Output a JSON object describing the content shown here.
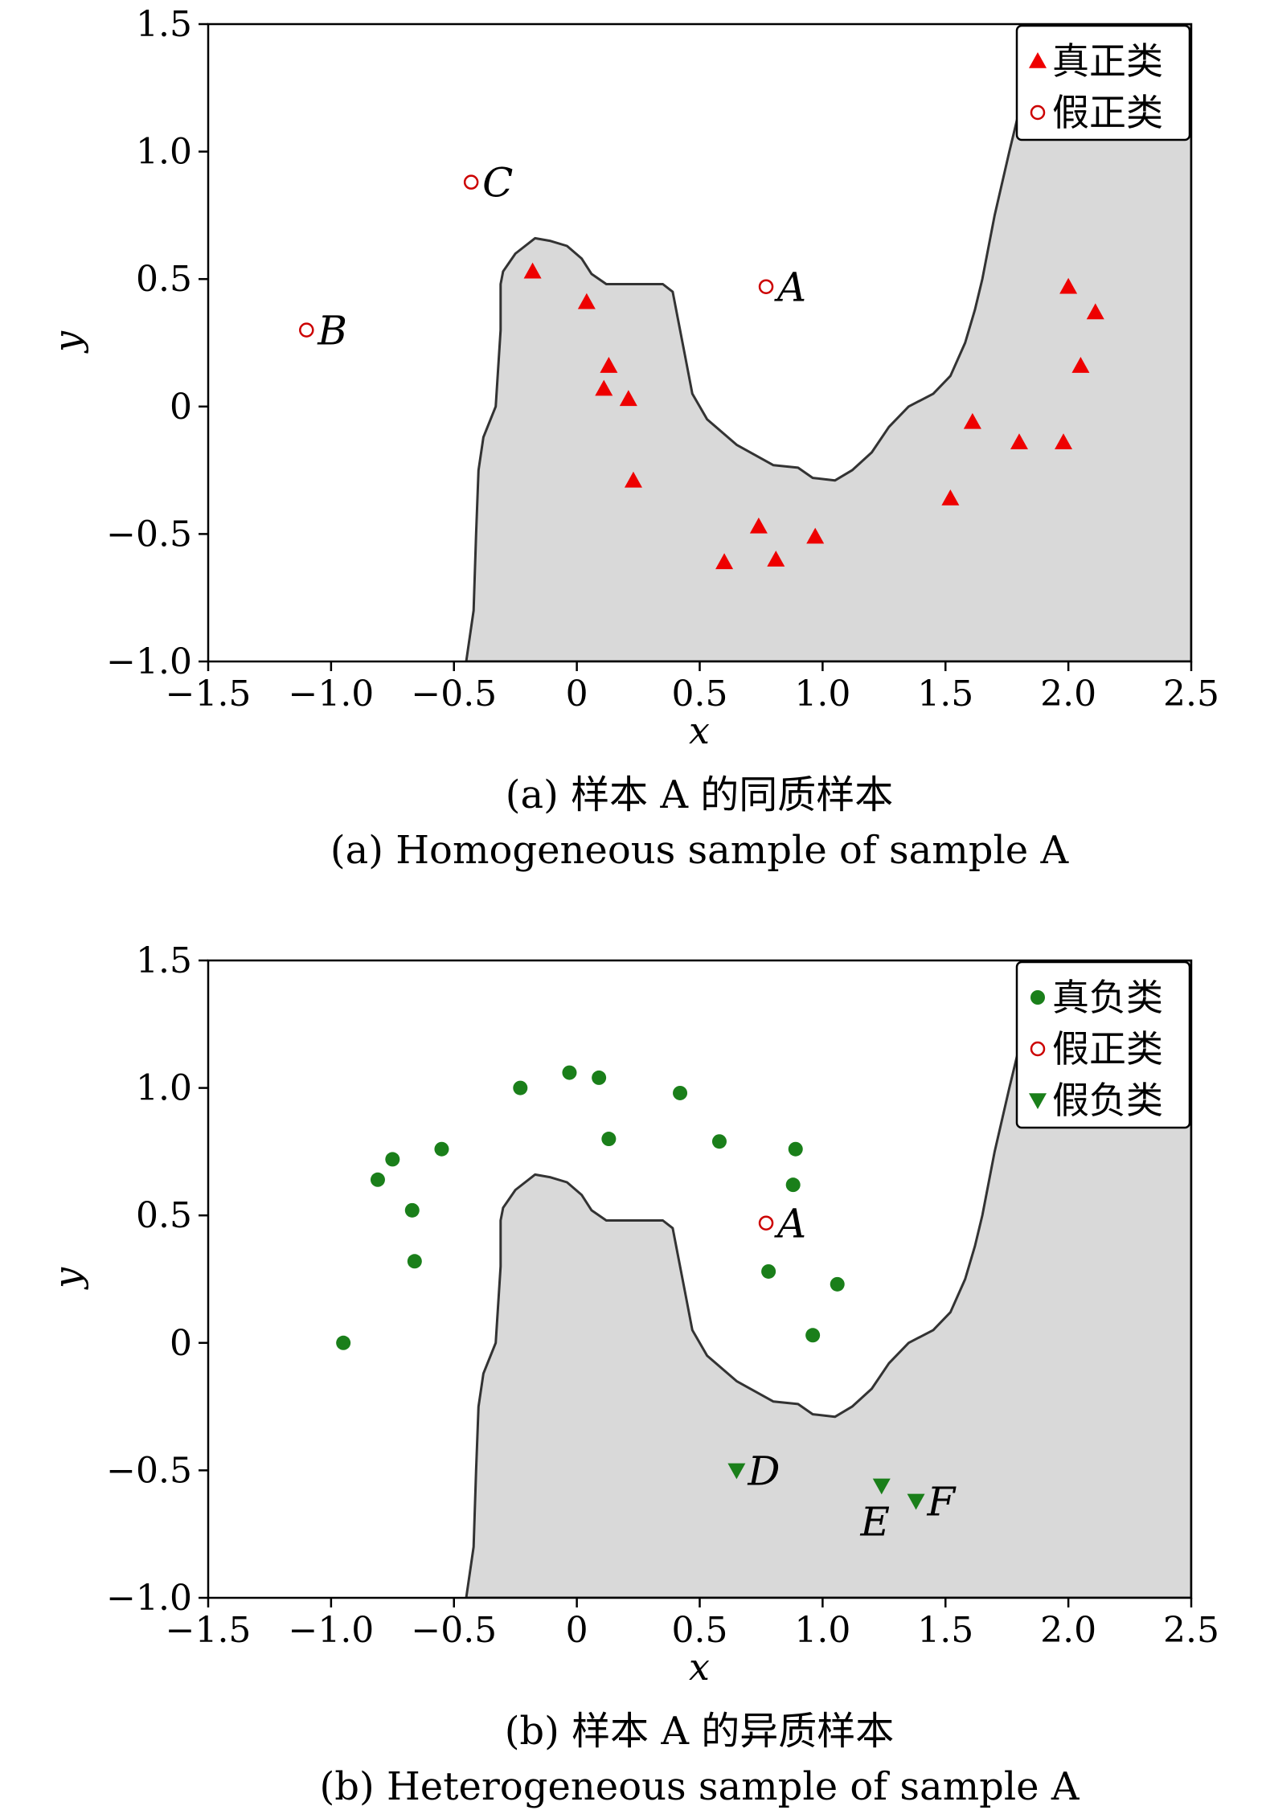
{
  "colors": {
    "region_fill": "#d9d9d9",
    "region_edge": "#333333",
    "true_positive": "#ee0000",
    "false_positive": "#cc0000",
    "true_negative": "#1a7f1a",
    "false_negative": "#1a7f1a"
  },
  "chart_data": [
    {
      "type": "scatter",
      "caption_cn": "(a) 样本 A 的同质样本",
      "caption_en": "(a) Homogeneous sample of sample A",
      "xlabel": "x",
      "ylabel": "y",
      "xlim": [
        -1.5,
        2.5
      ],
      "ylim": [
        -1.0,
        1.5
      ],
      "xticks": [
        -1.5,
        -1.0,
        -0.5,
        0,
        0.5,
        1.0,
        1.5,
        2.0,
        2.5
      ],
      "xtick_labels": [
        "−1.5",
        "−1.0",
        "−0.5",
        "0",
        "0.5",
        "1.0",
        "1.5",
        "2.0",
        "2.5"
      ],
      "yticks": [
        -1.0,
        -0.5,
        0,
        0.5,
        1.0,
        1.5
      ],
      "ytick_labels": [
        "−1.0",
        "−0.5",
        "0",
        "0.5",
        "1.0",
        "1.5"
      ],
      "legend_position": "top-right",
      "series": [
        {
          "name": "真正类",
          "marker": "triangle-up",
          "color_key": "true_positive",
          "points": [
            {
              "x": -0.18,
              "y": 0.53
            },
            {
              "x": 0.04,
              "y": 0.41
            },
            {
              "x": 0.13,
              "y": 0.16
            },
            {
              "x": 0.11,
              "y": 0.07
            },
            {
              "x": 0.21,
              "y": 0.03
            },
            {
              "x": 0.23,
              "y": -0.29
            },
            {
              "x": 0.6,
              "y": -0.61
            },
            {
              "x": 0.74,
              "y": -0.47
            },
            {
              "x": 0.81,
              "y": -0.6
            },
            {
              "x": 0.97,
              "y": -0.51
            },
            {
              "x": 1.52,
              "y": -0.36
            },
            {
              "x": 1.61,
              "y": -0.06
            },
            {
              "x": 1.8,
              "y": -0.14
            },
            {
              "x": 1.98,
              "y": -0.14
            },
            {
              "x": 2.0,
              "y": 0.47
            },
            {
              "x": 2.05,
              "y": 0.16
            },
            {
              "x": 2.11,
              "y": 0.37
            }
          ]
        },
        {
          "name": "假正类",
          "marker": "circle-open",
          "color_key": "false_positive",
          "points": [
            {
              "x": 0.77,
              "y": 0.47,
              "label": "A"
            },
            {
              "x": -1.1,
              "y": 0.3,
              "label": "B"
            },
            {
              "x": -0.43,
              "y": 0.88,
              "label": "C"
            }
          ]
        }
      ]
    },
    {
      "type": "scatter",
      "caption_cn": "(b) 样本 A 的异质样本",
      "caption_en": "(b) Heterogeneous sample of sample A",
      "xlabel": "x",
      "ylabel": "y",
      "xlim": [
        -1.5,
        2.5
      ],
      "ylim": [
        -1.0,
        1.5
      ],
      "xticks": [
        -1.5,
        -1.0,
        -0.5,
        0,
        0.5,
        1.0,
        1.5,
        2.0,
        2.5
      ],
      "xtick_labels": [
        "−1.5",
        "−1.0",
        "−0.5",
        "0",
        "0.5",
        "1.0",
        "1.5",
        "2.0",
        "2.5"
      ],
      "yticks": [
        -1.0,
        -0.5,
        0,
        0.5,
        1.0,
        1.5
      ],
      "ytick_labels": [
        "−1.0",
        "−0.5",
        "0",
        "0.5",
        "1.0",
        "1.5"
      ],
      "legend_position": "top-right",
      "series": [
        {
          "name": "真负类",
          "marker": "circle-filled",
          "color_key": "true_negative",
          "points": [
            {
              "x": -0.95,
              "y": 0.0
            },
            {
              "x": -0.81,
              "y": 0.64
            },
            {
              "x": -0.75,
              "y": 0.72
            },
            {
              "x": -0.67,
              "y": 0.52
            },
            {
              "x": -0.66,
              "y": 0.32
            },
            {
              "x": -0.55,
              "y": 0.76
            },
            {
              "x": -0.23,
              "y": 1.0
            },
            {
              "x": -0.03,
              "y": 1.06
            },
            {
              "x": 0.09,
              "y": 1.04
            },
            {
              "x": 0.13,
              "y": 0.8
            },
            {
              "x": 0.42,
              "y": 0.98
            },
            {
              "x": 0.58,
              "y": 0.79
            },
            {
              "x": 0.78,
              "y": 0.28
            },
            {
              "x": 0.88,
              "y": 0.62
            },
            {
              "x": 0.89,
              "y": 0.76
            },
            {
              "x": 0.96,
              "y": 0.03
            },
            {
              "x": 1.06,
              "y": 0.23
            }
          ]
        },
        {
          "name": "假正类",
          "marker": "circle-open",
          "color_key": "false_positive",
          "points": [
            {
              "x": 0.77,
              "y": 0.47,
              "label": "A"
            }
          ]
        },
        {
          "name": "假负类",
          "marker": "triangle-down",
          "color_key": "false_negative",
          "points": [
            {
              "x": 0.65,
              "y": -0.5,
              "label": "D"
            },
            {
              "x": 1.24,
              "y": -0.56,
              "label": "E"
            },
            {
              "x": 1.38,
              "y": -0.62,
              "label": "F"
            }
          ]
        }
      ]
    }
  ]
}
